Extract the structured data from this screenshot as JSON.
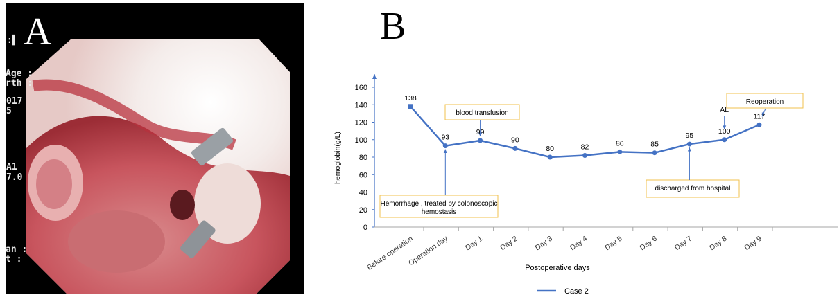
{
  "panel_a": {
    "letter": "A",
    "osd": [
      ":▌",
      "Age :",
      "rth :",
      "017",
      "5",
      "A1",
      "7.0",
      "an :",
      "t :"
    ]
  },
  "panel_b": {
    "letter": "B"
  },
  "chart_data": {
    "type": "line",
    "xlabel": "Postoperative days",
    "ylabel": "hemoglobin(g/L)",
    "ylim": [
      0,
      160
    ],
    "yticks": [
      0,
      20,
      40,
      60,
      80,
      100,
      120,
      140,
      160
    ],
    "categories": [
      "Before operation",
      "Operation day",
      "Day 1",
      "Day 2",
      "Day 3",
      "Day 4",
      "Day 5",
      "Day 6",
      "Day 7",
      "Day 8",
      "Day 9"
    ],
    "series": [
      {
        "name": "Case 2",
        "values": [
          138,
          93,
          99,
          90,
          80,
          82,
          86,
          85,
          95,
          100,
          117
        ]
      }
    ],
    "data_labels": [
      "138",
      "93",
      "99",
      "90",
      "80",
      "82",
      "86",
      "85",
      "95",
      "100",
      "117"
    ],
    "annotations": [
      {
        "text": "blood transfusion",
        "category": "Day 1"
      },
      {
        "text": "Hemorrhage , treated by colonoscopic hemostasis",
        "category": "Operation day"
      },
      {
        "text": "discharged from hospital",
        "category": "Day 7"
      },
      {
        "text": "Reoperation",
        "category": "Day 9"
      },
      {
        "text": "AL",
        "category": "Day 8"
      }
    ],
    "legend": {
      "position": "bottom",
      "label": "Case 2"
    },
    "line_color": "#4472c4",
    "annotation_border_color": "#f2c14e",
    "grid": false
  }
}
